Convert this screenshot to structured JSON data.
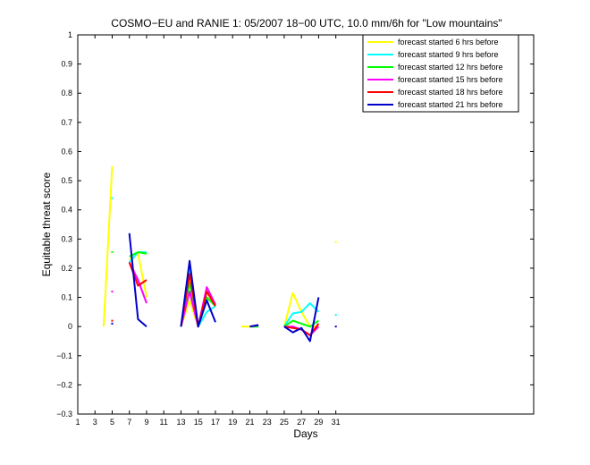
{
  "chart_data": {
    "type": "line",
    "title": "COSMO−EU and RANIE 1: 05/2007 18−00 UTC, 10.0 mm/6h for \"Low mountains\"",
    "xlabel": "Days",
    "ylabel": "Equitable threat score",
    "xlim": [
      1,
      54
    ],
    "ylim": [
      -0.3,
      1
    ],
    "xticks": [
      1,
      3,
      5,
      7,
      9,
      11,
      13,
      15,
      17,
      19,
      21,
      23,
      25,
      27,
      29,
      31
    ],
    "yticks": [
      -0.3,
      -0.2,
      -0.1,
      0,
      0.1,
      0.2,
      0.3,
      0.4,
      0.5,
      0.6,
      0.7,
      0.8,
      0.9,
      1
    ],
    "ytick_labels": [
      "−0.3",
      "−0.2",
      "−0.1",
      "0",
      "0.1",
      "0.2",
      "0.3",
      "0.4",
      "0.5",
      "0.6",
      "0.7",
      "0.8",
      "0.9",
      "1"
    ],
    "legend_position": "top-right",
    "series": [
      {
        "name": "forecast started 6 hrs before",
        "color": "#ffff00",
        "segments": [
          [
            [
              4,
              0.0
            ],
            [
              5,
              0.55
            ]
          ],
          [
            [
              7,
              0.23
            ],
            [
              8,
              0.25
            ],
            [
              9,
              0.1
            ]
          ],
          [
            [
              13,
              0.0
            ],
            [
              14,
              0.09
            ],
            [
              15,
              0.0
            ],
            [
              16,
              0.12
            ],
            [
              17,
              0.07
            ]
          ],
          [
            [
              20,
              0.0
            ],
            [
              21,
              0.0
            ]
          ],
          [
            [
              25,
              0.0
            ],
            [
              26,
              0.115
            ],
            [
              27,
              0.05
            ],
            [
              28,
              0.0
            ],
            [
              29,
              0.0
            ]
          ]
        ],
        "points": [
          [
            31,
            0.29
          ]
        ]
      },
      {
        "name": "forecast started 9 hrs before",
        "color": "#00ffff",
        "segments": [
          [
            [
              7,
              0.22
            ],
            [
              8,
              0.255
            ],
            [
              9,
              0.255
            ]
          ],
          [
            [
              13,
              0.0
            ],
            [
              14,
              0.2
            ],
            [
              15,
              0.0
            ],
            [
              16,
              0.05
            ],
            [
              17,
              0.07
            ]
          ],
          [
            [
              21,
              0.0
            ],
            [
              22,
              0.0
            ]
          ],
          [
            [
              25,
              0.0
            ],
            [
              26,
              0.045
            ],
            [
              27,
              0.05
            ],
            [
              28,
              0.08
            ],
            [
              29,
              0.05
            ]
          ]
        ],
        "points": [
          [
            5,
            0.44
          ],
          [
            31,
            0.04
          ]
        ]
      },
      {
        "name": "forecast started 12 hrs before",
        "color": "#00ff00",
        "segments": [
          [
            [
              7,
              0.24
            ],
            [
              8,
              0.255
            ],
            [
              9,
              0.25
            ]
          ],
          [
            [
              13,
              0.0
            ],
            [
              14,
              0.15
            ],
            [
              15,
              0.0
            ],
            [
              16,
              0.1
            ],
            [
              17,
              0.07
            ]
          ],
          [
            [
              21,
              0.0
            ],
            [
              22,
              0.0
            ]
          ],
          [
            [
              25,
              0.0
            ],
            [
              26,
              0.02
            ],
            [
              27,
              0.01
            ],
            [
              28,
              0.0
            ],
            [
              29,
              0.02
            ]
          ]
        ],
        "points": [
          [
            5,
            0.255
          ]
        ]
      },
      {
        "name": "forecast started 15 hrs before",
        "color": "#ff00ff",
        "segments": [
          [
            [
              7,
              0.22
            ],
            [
              8,
              0.16
            ],
            [
              9,
              0.08
            ]
          ],
          [
            [
              13,
              0.0
            ],
            [
              14,
              0.12
            ],
            [
              15,
              0.0
            ],
            [
              16,
              0.135
            ],
            [
              17,
              0.075
            ]
          ],
          [
            [
              21,
              0.0
            ],
            [
              22,
              0.005
            ]
          ],
          [
            [
              25,
              0.0
            ],
            [
              26,
              0.0
            ],
            [
              27,
              -0.01
            ],
            [
              28,
              -0.03
            ],
            [
              29,
              0.0
            ]
          ]
        ],
        "points": [
          [
            5,
            0.12
          ]
        ]
      },
      {
        "name": "forecast started 18 hrs before",
        "color": "#ff0000",
        "segments": [
          [
            [
              7,
              0.22
            ],
            [
              8,
              0.14
            ],
            [
              9,
              0.16
            ]
          ],
          [
            [
              13,
              0.0
            ],
            [
              14,
              0.18
            ],
            [
              15,
              0.0
            ],
            [
              16,
              0.12
            ],
            [
              17,
              0.07
            ]
          ],
          [
            [
              21,
              0.0
            ],
            [
              22,
              0.005
            ]
          ],
          [
            [
              25,
              0.0
            ],
            [
              26,
              -0.005
            ],
            [
              27,
              -0.01
            ],
            [
              28,
              -0.03
            ],
            [
              29,
              0.01
            ]
          ]
        ],
        "points": [
          [
            5,
            0.02
          ]
        ]
      },
      {
        "name": "forecast started 21 hrs before",
        "color": "#0000cc",
        "segments": [
          [
            [
              7,
              0.32
            ],
            [
              8,
              0.025
            ],
            [
              9,
              0.0
            ]
          ],
          [
            [
              13,
              0.0
            ],
            [
              14,
              0.225
            ],
            [
              15,
              0.0
            ],
            [
              16,
              0.09
            ],
            [
              17,
              0.015
            ]
          ],
          [
            [
              21,
              0.0
            ],
            [
              22,
              0.005
            ]
          ],
          [
            [
              25,
              0.0
            ],
            [
              26,
              -0.02
            ],
            [
              27,
              -0.005
            ],
            [
              28,
              -0.05
            ],
            [
              29,
              0.1
            ]
          ]
        ],
        "points": [
          [
            5,
            0.01
          ],
          [
            31,
            0.0
          ]
        ]
      }
    ]
  }
}
